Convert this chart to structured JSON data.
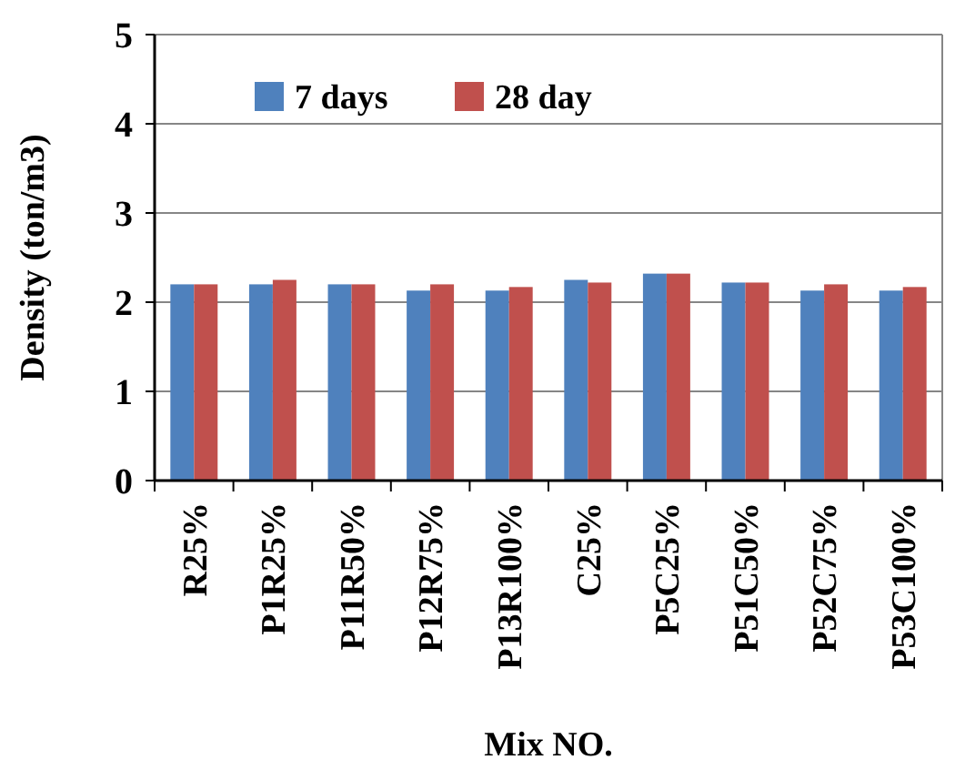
{
  "chart_data": {
    "type": "bar",
    "xlabel": "Mix NO.",
    "ylabel": "Density  (ton/m3)",
    "categories": [
      "R25%",
      "P1R25%",
      "P11R50%",
      "P12R75%",
      "P13R100%",
      "C25%",
      "P5C25%",
      "P51C50%",
      "P52C75%",
      "P53C100%"
    ],
    "series": [
      {
        "name": "7 days",
        "color": "#4f81bd",
        "values": [
          2.2,
          2.2,
          2.2,
          2.13,
          2.13,
          2.25,
          2.32,
          2.22,
          2.13,
          2.13
        ]
      },
      {
        "name": "28 day",
        "color": "#c0504d",
        "values": [
          2.2,
          2.25,
          2.2,
          2.2,
          2.17,
          2.22,
          2.32,
          2.22,
          2.2,
          2.17
        ]
      }
    ],
    "ylim": [
      0,
      5
    ],
    "yticks": [
      0,
      1,
      2,
      3,
      4,
      5
    ],
    "grid": "y",
    "legend": "top"
  }
}
